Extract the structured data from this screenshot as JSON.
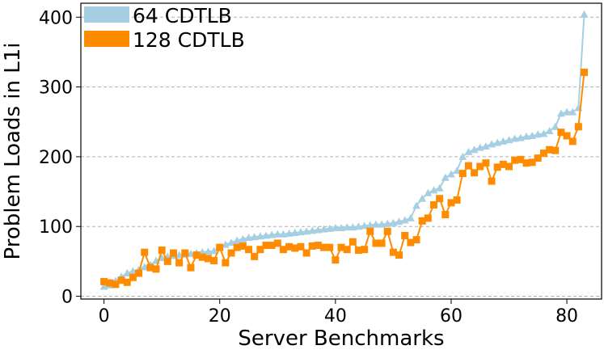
{
  "chart_data": {
    "type": "line",
    "xlabel": "Server Benchmarks",
    "ylabel": "Problem Loads in L1i",
    "xlim": [
      -4,
      86
    ],
    "ylim": [
      -4,
      420
    ],
    "xticks": [
      0,
      20,
      40,
      60,
      80
    ],
    "yticks": [
      0,
      100,
      200,
      300,
      400
    ],
    "grid": "horizontal dashed",
    "legend_position": "top-left",
    "series": [
      {
        "name": "64 CDTLB",
        "color": "#a6cfe3",
        "marker": "triangle",
        "values": [
          14,
          16,
          22,
          28,
          33,
          36,
          38,
          42,
          45,
          51,
          55,
          57,
          58,
          59,
          60,
          61,
          62,
          63,
          64,
          65,
          70,
          74,
          77,
          80,
          82,
          84,
          85,
          86,
          87,
          88,
          89,
          89,
          90,
          91,
          92,
          93,
          94,
          95,
          96,
          97,
          98,
          98,
          99,
          99,
          100,
          101,
          102,
          103,
          103,
          104,
          105,
          107,
          109,
          112,
          130,
          140,
          148,
          152,
          155,
          170,
          175,
          180,
          200,
          207,
          210,
          213,
          215,
          218,
          220,
          222,
          224,
          226,
          227,
          229,
          230,
          232,
          233,
          237,
          243,
          262,
          264,
          264,
          270,
          404
        ]
      },
      {
        "name": "128 CDTLB",
        "color": "#ff8c00",
        "marker": "square",
        "values": [
          21,
          19,
          17,
          23,
          20,
          27,
          33,
          63,
          41,
          39,
          66,
          50,
          62,
          48,
          62,
          41,
          59,
          56,
          54,
          51,
          70,
          48,
          62,
          70,
          72,
          67,
          57,
          67,
          73,
          73,
          76,
          67,
          71,
          69,
          71,
          62,
          72,
          73,
          70,
          70,
          52,
          70,
          67,
          78,
          66,
          67,
          93,
          76,
          76,
          93,
          63,
          59,
          87,
          77,
          81,
          108,
          112,
          131,
          140,
          117,
          134,
          138,
          176,
          187,
          177,
          186,
          191,
          165,
          185,
          189,
          186,
          195,
          196,
          191,
          192,
          198,
          205,
          210,
          209,
          235,
          230,
          222,
          243,
          321
        ]
      }
    ]
  }
}
